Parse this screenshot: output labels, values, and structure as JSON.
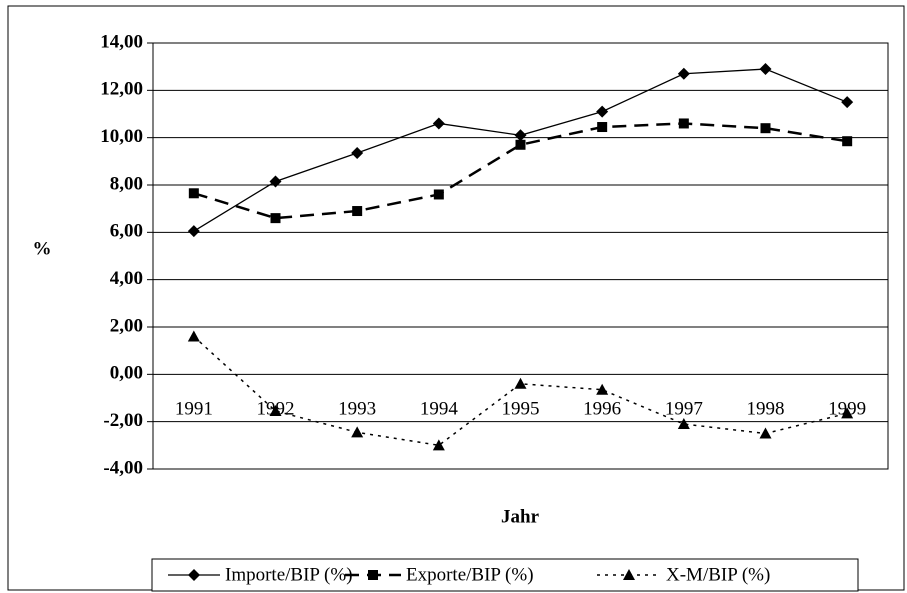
{
  "chart_data": {
    "type": "line",
    "xlabel": "Jahr",
    "ylabel": "%",
    "categories": [
      "1991",
      "1992",
      "1993",
      "1994",
      "1995",
      "1996",
      "1997",
      "1998",
      "1999"
    ],
    "series": [
      {
        "name": "Importe/BIP (%)",
        "color": "#000000",
        "line_style": "solid",
        "marker": "diamond",
        "values": [
          6.05,
          8.15,
          9.35,
          10.6,
          10.1,
          11.1,
          12.7,
          12.9,
          11.5
        ]
      },
      {
        "name": "Exporte/BIP (%)",
        "color": "#000000",
        "line_style": "dashed",
        "marker": "square",
        "values": [
          7.65,
          6.6,
          6.9,
          7.6,
          9.7,
          10.45,
          10.6,
          10.4,
          9.85
        ]
      },
      {
        "name": "X-M/BIP (%)",
        "color": "#000000",
        "line_style": "dotted",
        "marker": "triangle",
        "values": [
          1.6,
          -1.55,
          -2.45,
          -3.0,
          -0.4,
          -0.65,
          -2.1,
          -2.5,
          -1.65
        ]
      }
    ],
    "ylim": [
      -4,
      14
    ],
    "yticks": [
      {
        "value": -4,
        "label": "-4,00"
      },
      {
        "value": -2,
        "label": "-2,00"
      },
      {
        "value": 0,
        "label": "0,00"
      },
      {
        "value": 2,
        "label": "2,00"
      },
      {
        "value": 4,
        "label": "4,00"
      },
      {
        "value": 6,
        "label": "6,00"
      },
      {
        "value": 8,
        "label": "8,00"
      },
      {
        "value": 10,
        "label": "10,00"
      },
      {
        "value": 12,
        "label": "12,00"
      },
      {
        "value": 14,
        "label": "14,00"
      }
    ],
    "grid": true,
    "legend": "bottom"
  }
}
